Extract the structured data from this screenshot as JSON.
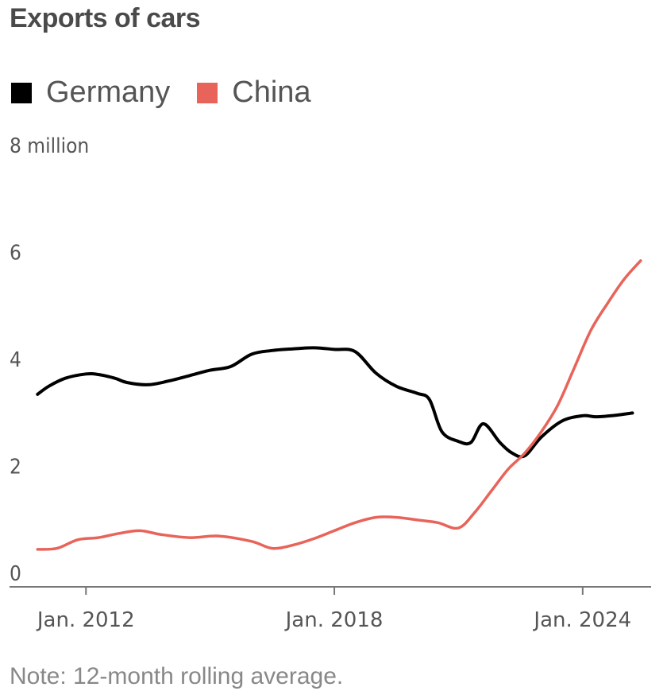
{
  "chart_data": {
    "type": "line",
    "title": "Exports of cars",
    "ylabel": "",
    "xlabel": "",
    "y_unit_label": "8 million",
    "ylim": [
      0,
      8
    ],
    "xlim": [
      2010.0,
      2025.5
    ],
    "y_ticks": [
      {
        "value": 0,
        "label": "0"
      },
      {
        "value": 2,
        "label": "2"
      },
      {
        "value": 4,
        "label": "4"
      },
      {
        "value": 6,
        "label": "6"
      },
      {
        "value": 8,
        "label": "8 million"
      }
    ],
    "x_ticks": [
      {
        "value": 2012,
        "label": "Jan. 2012"
      },
      {
        "value": 2018,
        "label": "Jan. 2018"
      },
      {
        "value": 2024,
        "label": "Jan. 2024"
      }
    ],
    "series": [
      {
        "name": "Germany",
        "color": "#000000",
        "points": [
          [
            2010.83,
            3.6
          ],
          [
            2011.1,
            3.75
          ],
          [
            2011.5,
            3.9
          ],
          [
            2012.0,
            3.98
          ],
          [
            2012.3,
            3.97
          ],
          [
            2012.7,
            3.9
          ],
          [
            2013.0,
            3.82
          ],
          [
            2013.5,
            3.78
          ],
          [
            2014.0,
            3.85
          ],
          [
            2014.5,
            3.95
          ],
          [
            2015.0,
            4.05
          ],
          [
            2015.5,
            4.12
          ],
          [
            2016.0,
            4.35
          ],
          [
            2016.5,
            4.42
          ],
          [
            2017.0,
            4.45
          ],
          [
            2017.5,
            4.47
          ],
          [
            2018.0,
            4.44
          ],
          [
            2018.5,
            4.4
          ],
          [
            2019.0,
            4.0
          ],
          [
            2019.5,
            3.75
          ],
          [
            2020.0,
            3.62
          ],
          [
            2020.3,
            3.5
          ],
          [
            2020.6,
            2.9
          ],
          [
            2021.0,
            2.72
          ],
          [
            2021.3,
            2.7
          ],
          [
            2021.6,
            3.05
          ],
          [
            2022.0,
            2.7
          ],
          [
            2022.3,
            2.5
          ],
          [
            2022.6,
            2.45
          ],
          [
            2023.0,
            2.8
          ],
          [
            2023.5,
            3.1
          ],
          [
            2024.0,
            3.2
          ],
          [
            2024.3,
            3.18
          ],
          [
            2024.7,
            3.2
          ],
          [
            2025.2,
            3.25
          ]
        ]
      },
      {
        "name": "China",
        "color": "#e8645a",
        "points": [
          [
            2010.83,
            0.7
          ],
          [
            2011.3,
            0.72
          ],
          [
            2011.8,
            0.88
          ],
          [
            2012.3,
            0.92
          ],
          [
            2012.8,
            1.0
          ],
          [
            2013.3,
            1.05
          ],
          [
            2013.8,
            0.98
          ],
          [
            2014.5,
            0.92
          ],
          [
            2015.2,
            0.95
          ],
          [
            2016.0,
            0.85
          ],
          [
            2016.5,
            0.72
          ],
          [
            2017.0,
            0.78
          ],
          [
            2017.5,
            0.9
          ],
          [
            2018.0,
            1.05
          ],
          [
            2018.5,
            1.2
          ],
          [
            2019.0,
            1.3
          ],
          [
            2019.5,
            1.3
          ],
          [
            2020.0,
            1.25
          ],
          [
            2020.5,
            1.2
          ],
          [
            2021.0,
            1.1
          ],
          [
            2021.4,
            1.4
          ],
          [
            2021.8,
            1.8
          ],
          [
            2022.2,
            2.2
          ],
          [
            2022.6,
            2.5
          ],
          [
            2023.0,
            2.9
          ],
          [
            2023.4,
            3.4
          ],
          [
            2023.8,
            4.1
          ],
          [
            2024.2,
            4.8
          ],
          [
            2024.6,
            5.3
          ],
          [
            2025.0,
            5.75
          ],
          [
            2025.4,
            6.1
          ]
        ]
      }
    ]
  },
  "note": "Note: 12-month rolling average."
}
